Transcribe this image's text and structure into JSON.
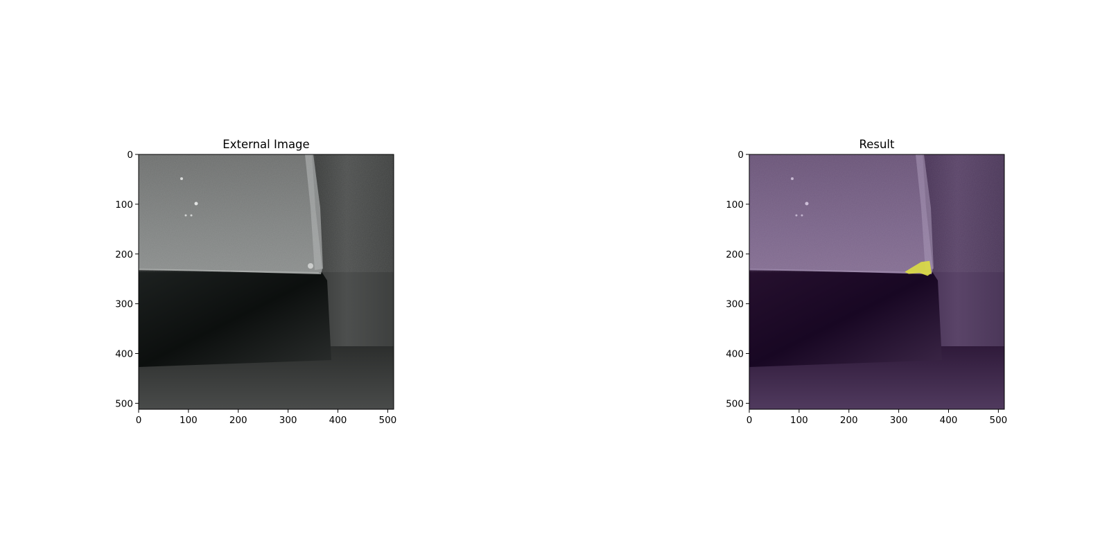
{
  "chart_data": [
    {
      "type": "image",
      "title": "External Image",
      "image_size": [
        512,
        512
      ],
      "xlim": [
        0,
        512
      ],
      "ylim": [
        512,
        0
      ],
      "xticks": [
        0,
        100,
        200,
        300,
        400,
        500
      ],
      "yticks": [
        0,
        100,
        200,
        300,
        400,
        500
      ],
      "colormap": "grayscale",
      "content": "grayscale photo of a tool edge corner",
      "edge_at_y": 235,
      "corner_at_x": 365
    },
    {
      "type": "image",
      "title": "Result",
      "image_size": [
        512,
        512
      ],
      "xlim": [
        0,
        512
      ],
      "ylim": [
        512,
        0
      ],
      "xticks": [
        0,
        100,
        200,
        300,
        400,
        500
      ],
      "yticks": [
        0,
        100,
        200,
        300,
        400,
        500
      ],
      "colormap": "viridis overlay",
      "highlight_color": "#dddd44",
      "highlight_region": {
        "x": [
          312,
          325,
          345,
          362,
          366,
          358,
          342,
          320
        ],
        "y": [
          236,
          228,
          216,
          214,
          238,
          244,
          238,
          240
        ]
      }
    }
  ]
}
